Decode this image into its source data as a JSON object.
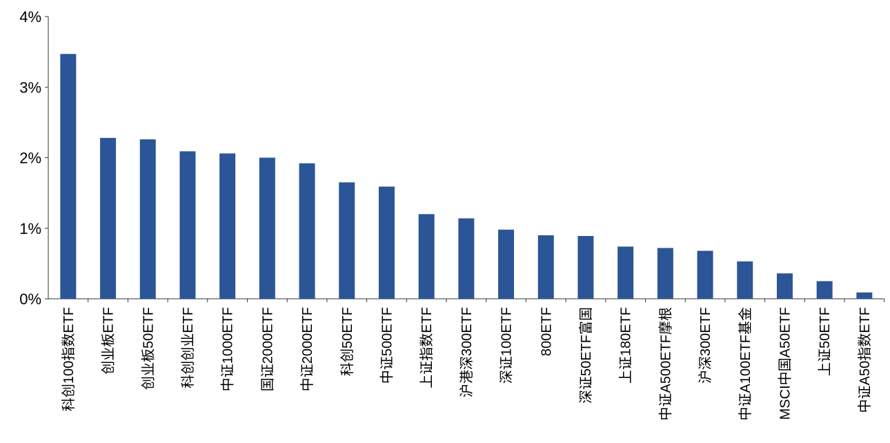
{
  "chart_data": {
    "type": "bar",
    "title": "",
    "xlabel": "",
    "ylabel": "",
    "ylim": [
      0,
      4
    ],
    "yticks": [
      "0%",
      "1%",
      "2%",
      "3%",
      "4%"
    ],
    "grid": false,
    "bar_color": "#2B5597",
    "categories": [
      "科创100指数ETF",
      "创业板ETF",
      "创业板50ETF",
      "科创创业ETF",
      "中证1000ETF",
      "国证2000ETF",
      "中证2000ETF",
      "科创50ETF",
      "中证500ETF",
      "上证指数ETF",
      "沪港深300ETF",
      "深证100ETF",
      "800ETF",
      "深证50ETF富国",
      "上证180ETF",
      "中证A500ETF摩根",
      "沪深300ETF",
      "中证A100ETF基金",
      "MSCI中国A50ETF",
      "上证50ETF",
      "中证A50指数ETF"
    ],
    "values": [
      3.47,
      2.28,
      2.26,
      2.09,
      2.06,
      2.0,
      1.92,
      1.65,
      1.59,
      1.2,
      1.14,
      0.98,
      0.9,
      0.89,
      0.74,
      0.72,
      0.68,
      0.53,
      0.36,
      0.25,
      0.09
    ],
    "unit": "%"
  }
}
